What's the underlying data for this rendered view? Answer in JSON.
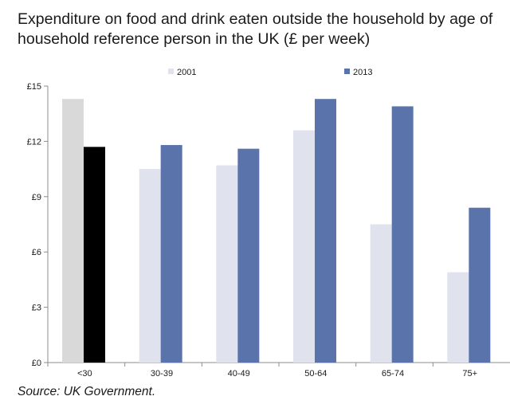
{
  "title_lines": [
    "Expenditure on food and drink eaten outside the household by age of",
    "household reference person in the UK (£ per week)"
  ],
  "source": "Source:  UK Government.",
  "colors": {
    "s2001": "#e0e3ee",
    "s2013": "#5b73ab",
    "highlight2001": "#d9d9d9",
    "highlight2013": "#000000",
    "axis": "#8c8c8c"
  },
  "chart_data": {
    "type": "bar",
    "title": "Expenditure on food and drink eaten outside the household by age of household reference person in the UK (£ per week)",
    "categories": [
      "<30",
      "30-39",
      "40-49",
      "50-64",
      "65-74",
      "75+"
    ],
    "series": [
      {
        "name": "2001",
        "values": [
          14.3,
          10.5,
          10.7,
          12.6,
          7.5,
          4.9
        ]
      },
      {
        "name": "2013",
        "values": [
          11.7,
          11.8,
          11.6,
          14.3,
          13.9,
          8.4
        ]
      }
    ],
    "highlighted_category": "<30",
    "ylim": [
      0,
      15
    ],
    "yticks": [
      0,
      3,
      6,
      9,
      12,
      15
    ],
    "ytick_labels": [
      "£0",
      "£3",
      "£6",
      "£9",
      "£12",
      "£15"
    ],
    "xlabel": "",
    "ylabel": "",
    "grid": false,
    "legend_position": "top"
  }
}
